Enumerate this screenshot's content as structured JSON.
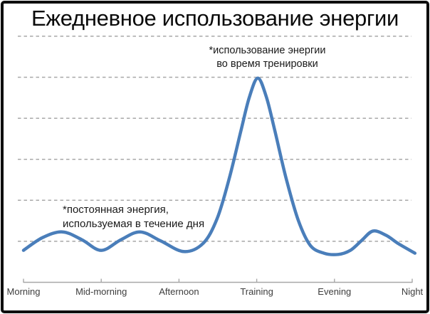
{
  "title": "Ежедневное использование энергии",
  "annotations": {
    "training_note": {
      "line1": "*использование энергии",
      "line2": "во время тренировки"
    },
    "constant_note": {
      "line1": "*постоянная энергия,",
      "line2": "используемая в течение дня"
    }
  },
  "chart_data": {
    "type": "line",
    "title": "Ежедневное использование энергии",
    "categories": [
      "Morning",
      "Mid-morning",
      "Afternoon",
      "Training",
      "Evening",
      "Night"
    ],
    "category_x_units": [
      0,
      2,
      4,
      6,
      8,
      10
    ],
    "xlim": [
      0,
      10.1
    ],
    "ylim": [
      0,
      6.5
    ],
    "gridlines_y_units": [
      1,
      2,
      3,
      4,
      5,
      6
    ],
    "grid_on": true,
    "legend": "none",
    "grid_color": "#a8a8a8",
    "axis_color": "#a8a8a8",
    "label_color": "#3d3d3d",
    "series": [
      {
        "name": "daily-energy-use",
        "color": "#4a7eba",
        "values_at_categories": [
          0.78,
          0.78,
          0.75,
          4.98,
          0.7,
          0.73
        ],
        "curve_points": [
          [
            0,
            0.78
          ],
          [
            0.49,
            1.09
          ],
          [
            1.0,
            1.23
          ],
          [
            1.5,
            1.04
          ],
          [
            2.0,
            0.78
          ],
          [
            2.51,
            1.04
          ],
          [
            3.0,
            1.23
          ],
          [
            3.53,
            1.01
          ],
          [
            4.12,
            0.75
          ],
          [
            4.62,
            0.95
          ],
          [
            4.98,
            1.55
          ],
          [
            5.29,
            2.52
          ],
          [
            5.59,
            3.68
          ],
          [
            5.81,
            4.51
          ],
          [
            6.03,
            4.98
          ],
          [
            6.25,
            4.51
          ],
          [
            6.47,
            3.68
          ],
          [
            6.76,
            2.52
          ],
          [
            7.07,
            1.51
          ],
          [
            7.38,
            0.9
          ],
          [
            7.73,
            0.71
          ],
          [
            8.1,
            0.68
          ],
          [
            8.41,
            0.78
          ],
          [
            8.7,
            1.02
          ],
          [
            8.99,
            1.25
          ],
          [
            9.32,
            1.15
          ],
          [
            9.65,
            0.94
          ],
          [
            10.07,
            0.71
          ]
        ]
      }
    ]
  }
}
